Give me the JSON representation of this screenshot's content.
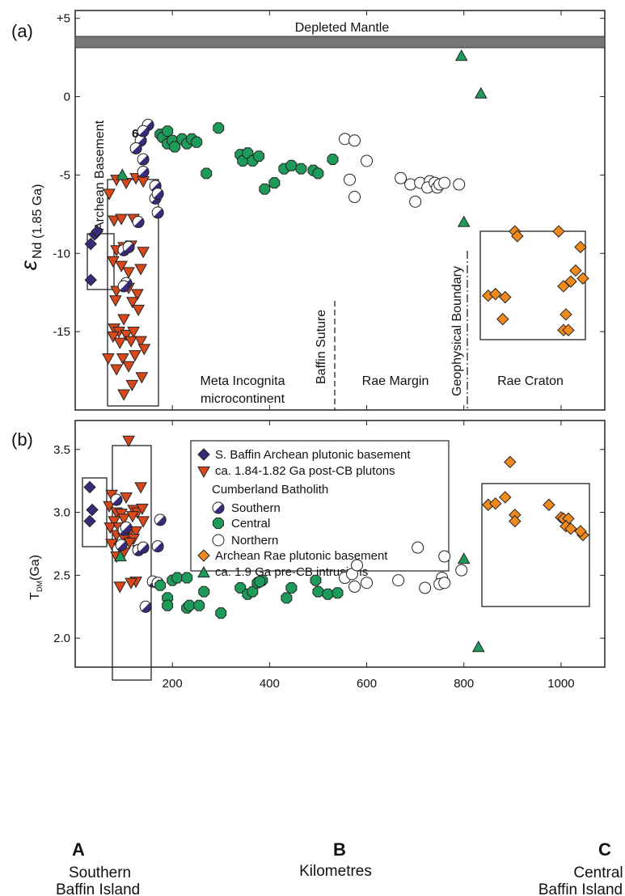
{
  "chart_data": [
    {
      "type": "scatter",
      "panel_label": "(a)",
      "ylabel_symbol": "ε",
      "ylabel_sub": "Nd (1.85 Ga)",
      "ylim": [
        -20,
        5.5
      ],
      "xlim": [
        0,
        1090
      ],
      "ytick_labels": [
        "+5",
        "0",
        "-5",
        "-10",
        "-15"
      ],
      "yticks": [
        5,
        0,
        -5,
        -10,
        -15
      ],
      "band_label": "Depleted Mantle",
      "annotations": {
        "archean_basement": "Archean Basement",
        "baffin_suture": "Baffin Suture",
        "geophysical_boundary": "Geophysical Boundary",
        "meta_incognita_1": "Meta Incognita",
        "meta_incognita_2": "microcontinent",
        "rae_margin": "Rae Margin",
        "rae_craton": "Rae Craton",
        "six": "6"
      },
      "series": [
        {
          "key": "archean_baffin",
          "color": "#3a2a7a",
          "marker": "diamond",
          "points": [
            [
              32,
              -9.4
            ],
            [
              40,
              -8.8
            ],
            [
              45,
              -8.6
            ],
            [
              32,
              -11.7
            ]
          ]
        },
        {
          "key": "post_cb",
          "color": "#d9481a",
          "marker": "triangle-down",
          "points": [
            [
              70,
              -6.2
            ],
            [
              85,
              -5.3
            ],
            [
              105,
              -5.5
            ],
            [
              125,
              -5.2
            ],
            [
              140,
              -5.4
            ],
            [
              80,
              -7.9
            ],
            [
              95,
              -7.8
            ],
            [
              120,
              -7.8
            ],
            [
              85,
              -9.8
            ],
            [
              100,
              -9.6
            ],
            [
              115,
              -9.5
            ],
            [
              140,
              -9.9
            ],
            [
              78,
              -10.5
            ],
            [
              95,
              -10.8
            ],
            [
              110,
              -11.2
            ],
            [
              135,
              -11.0
            ],
            [
              85,
              -12.4
            ],
            [
              110,
              -12.2
            ],
            [
              128,
              -12.6
            ],
            [
              83,
              -13.0
            ],
            [
              118,
              -13.1
            ],
            [
              100,
              -14.2
            ],
            [
              130,
              -13.6
            ],
            [
              80,
              -14.8
            ],
            [
              90,
              -15.0
            ],
            [
              105,
              -15.2
            ],
            [
              120,
              -15.0
            ],
            [
              78,
              -15.3
            ],
            [
              92,
              -15.7
            ],
            [
              115,
              -15.6
            ],
            [
              135,
              -15.6
            ],
            [
              68,
              -16.7
            ],
            [
              98,
              -16.7
            ],
            [
              123,
              -16.5
            ],
            [
              142,
              -16.1
            ],
            [
              85,
              -17.4
            ],
            [
              110,
              -17.2
            ],
            [
              137,
              -17.9
            ],
            [
              117,
              -18.4
            ],
            [
              100,
              -19.0
            ]
          ]
        },
        {
          "key": "southern",
          "color": "#3a2a7a",
          "marker": "half-circle",
          "points": [
            [
              150,
              -1.8
            ],
            [
              135,
              -2.8
            ],
            [
              140,
              -2.2
            ],
            [
              125,
              -3.3
            ],
            [
              140,
              -4.0
            ],
            [
              140,
              -4.8
            ],
            [
              165,
              -5.7
            ],
            [
              165,
              -6.5
            ],
            [
              170,
              -6.2
            ],
            [
              170,
              -7.4
            ],
            [
              130,
              -8.0
            ],
            [
              100,
              -9.8
            ],
            [
              110,
              -9.6
            ],
            [
              105,
              -11.9
            ],
            [
              100,
              -12.1
            ]
          ]
        },
        {
          "key": "central",
          "color": "#1e9a5a",
          "marker": "octagon",
          "points": [
            [
              175,
              -2.4
            ],
            [
              180,
              -2.6
            ],
            [
              190,
              -2.2
            ],
            [
              190,
              -3.0
            ],
            [
              200,
              -2.8
            ],
            [
              205,
              -3.2
            ],
            [
              220,
              -2.7
            ],
            [
              230,
              -3.0
            ],
            [
              240,
              -2.7
            ],
            [
              250,
              -2.9
            ],
            [
              270,
              -4.9
            ],
            [
              295,
              -2.0
            ],
            [
              340,
              -3.7
            ],
            [
              345,
              -4.1
            ],
            [
              355,
              -3.6
            ],
            [
              365,
              -4.1
            ],
            [
              378,
              -3.8
            ],
            [
              390,
              -5.9
            ],
            [
              410,
              -5.5
            ],
            [
              430,
              -4.6
            ],
            [
              445,
              -4.4
            ],
            [
              465,
              -4.6
            ],
            [
              490,
              -4.7
            ],
            [
              500,
              -4.9
            ],
            [
              530,
              -4.0
            ]
          ]
        },
        {
          "key": "northern",
          "color": "#ffffff",
          "marker": "circle",
          "points": [
            [
              555,
              -2.7
            ],
            [
              575,
              -2.8
            ],
            [
              565,
              -5.3
            ],
            [
              575,
              -6.4
            ],
            [
              600,
              -4.1
            ],
            [
              670,
              -5.2
            ],
            [
              690,
              -5.6
            ],
            [
              710,
              -5.5
            ],
            [
              730,
              -5.4
            ],
            [
              700,
              -6.7
            ],
            [
              725,
              -5.8
            ],
            [
              740,
              -5.5
            ],
            [
              745,
              -5.8
            ],
            [
              750,
              -5.6
            ],
            [
              760,
              -5.5
            ],
            [
              790,
              -5.6
            ]
          ]
        },
        {
          "key": "rae",
          "color": "#f08a1e",
          "marker": "diamond",
          "points": [
            [
              850,
              -12.7
            ],
            [
              865,
              -12.6
            ],
            [
              905,
              -8.6
            ],
            [
              910,
              -8.9
            ],
            [
              880,
              -14.2
            ],
            [
              885,
              -12.8
            ],
            [
              995,
              -8.6
            ],
            [
              1005,
              -12.1
            ],
            [
              1010,
              -13.9
            ],
            [
              1030,
              -11.1
            ],
            [
              1005,
              -14.9
            ],
            [
              1040,
              -9.6
            ],
            [
              1045,
              -11.6
            ],
            [
              1020,
              -11.8
            ],
            [
              1015,
              -14.9
            ]
          ]
        },
        {
          "key": "pre_cb",
          "color": "#1e9a5a",
          "marker": "triangle-up",
          "points": [
            [
              795,
              2.6
            ],
            [
              835,
              0.2
            ],
            [
              800,
              -8.0
            ],
            [
              97,
              -5.0
            ]
          ]
        }
      ]
    },
    {
      "type": "scatter",
      "panel_label": "(b)",
      "ylabel_main": "T",
      "ylabel_sub": "DM",
      "ylabel_unit": " (Ga)",
      "ylim": [
        1.77,
        3.73
      ],
      "xlim": [
        0,
        1090
      ],
      "yticks": [
        2.0,
        2.5,
        3.0,
        3.5
      ],
      "ytick_labels": [
        "2.0",
        "2.5",
        "3.0",
        "3.5"
      ],
      "legend": {
        "entries": [
          "S. Baffin Archean plutonic basement",
          "ca. 1.84-1.82 Ga post-CB plutons",
          "Cumberland Batholith",
          "Southern",
          "Central",
          "Northern",
          "Archean Rae plutonic basement",
          "ca. 1.9 Ga pre-CB  intrusions"
        ]
      },
      "series": [
        {
          "key": "archean_baffin",
          "color": "#3a2a7a",
          "marker": "diamond",
          "points": [
            [
              30,
              3.2
            ],
            [
              35,
              3.02
            ],
            [
              30,
              2.93
            ]
          ]
        },
        {
          "key": "post_cb",
          "color": "#d9481a",
          "marker": "triangle-down",
          "points": [
            [
              110,
              3.57
            ],
            [
              75,
              3.14
            ],
            [
              105,
              3.12
            ],
            [
              135,
              3.2
            ],
            [
              70,
              3.05
            ],
            [
              85,
              3.0
            ],
            [
              95,
              2.99
            ],
            [
              120,
              3.02
            ],
            [
              128,
              3.0
            ],
            [
              138,
              3.03
            ],
            [
              80,
              2.93
            ],
            [
              100,
              2.95
            ],
            [
              118,
              2.97
            ],
            [
              140,
              2.93
            ],
            [
              72,
              2.88
            ],
            [
              90,
              2.88
            ],
            [
              110,
              2.83
            ],
            [
              125,
              2.85
            ],
            [
              85,
              2.82
            ],
            [
              100,
              2.8
            ],
            [
              120,
              2.79
            ],
            [
              75,
              2.75
            ],
            [
              92,
              2.72
            ],
            [
              112,
              2.76
            ],
            [
              130,
              2.7
            ],
            [
              85,
              2.65
            ],
            [
              100,
              2.68
            ],
            [
              92,
              2.41
            ],
            [
              125,
              2.45
            ],
            [
              115,
              2.44
            ]
          ]
        },
        {
          "key": "southern",
          "color": "#3a2a7a",
          "marker": "half-circle",
          "points": [
            [
              85,
              3.1
            ],
            [
              175,
              2.94
            ],
            [
              95,
              2.74
            ],
            [
              100,
              2.86
            ],
            [
              105,
              2.88
            ],
            [
              130,
              2.7
            ],
            [
              140,
              2.72
            ],
            [
              170,
              2.73
            ],
            [
              160,
              2.45
            ],
            [
              170,
              2.44
            ],
            [
              145,
              2.25
            ]
          ]
        },
        {
          "key": "central",
          "color": "#1e9a5a",
          "marker": "octagon",
          "points": [
            [
              175,
              2.42
            ],
            [
              190,
              2.32
            ],
            [
              200,
              2.46
            ],
            [
              190,
              2.26
            ],
            [
              210,
              2.48
            ],
            [
              230,
              2.48
            ],
            [
              230,
              2.24
            ],
            [
              235,
              2.26
            ],
            [
              255,
              2.26
            ],
            [
              265,
              2.37
            ],
            [
              300,
              2.2
            ],
            [
              340,
              2.4
            ],
            [
              355,
              2.35
            ],
            [
              365,
              2.37
            ],
            [
              375,
              2.44
            ],
            [
              385,
              2.46
            ],
            [
              380,
              2.45
            ],
            [
              435,
              2.32
            ],
            [
              445,
              2.4
            ],
            [
              495,
              2.46
            ],
            [
              500,
              2.37
            ],
            [
              520,
              2.35
            ],
            [
              540,
              2.36
            ]
          ]
        },
        {
          "key": "northern",
          "color": "#ffffff",
          "marker": "circle",
          "points": [
            [
              555,
              2.48
            ],
            [
              570,
              2.51
            ],
            [
              580,
              2.58
            ],
            [
              575,
              2.41
            ],
            [
              600,
              2.44
            ],
            [
              665,
              2.46
            ],
            [
              705,
              2.72
            ],
            [
              720,
              2.4
            ],
            [
              755,
              2.48
            ],
            [
              760,
              2.65
            ],
            [
              750,
              2.43
            ],
            [
              760,
              2.44
            ],
            [
              795,
              2.54
            ]
          ]
        },
        {
          "key": "rae",
          "color": "#f08a1e",
          "marker": "diamond",
          "points": [
            [
              895,
              3.4
            ],
            [
              885,
              3.12
            ],
            [
              850,
              3.06
            ],
            [
              865,
              3.07
            ],
            [
              905,
              2.98
            ],
            [
              905,
              2.93
            ],
            [
              975,
              3.06
            ],
            [
              1000,
              2.96
            ],
            [
              1005,
              2.95
            ],
            [
              1015,
              2.95
            ],
            [
              1010,
              2.89
            ],
            [
              1020,
              2.87
            ],
            [
              1045,
              2.82
            ],
            [
              1040,
              2.85
            ]
          ]
        },
        {
          "key": "pre_cb",
          "color": "#1e9a5a",
          "marker": "triangle-up",
          "points": [
            [
              800,
              2.63
            ],
            [
              830,
              1.93
            ],
            [
              93,
              2.65
            ]
          ]
        }
      ]
    }
  ],
  "xaxis": {
    "ticks": [
      200,
      400,
      600,
      800,
      1000
    ],
    "tick_labels": [
      "200",
      "400",
      "600",
      "800",
      "1000"
    ],
    "letters": [
      "A",
      "B",
      "C"
    ],
    "letter_positions": [
      0,
      545,
      1090
    ],
    "xlabel": "Kilometres",
    "left_caption_1": "Southern",
    "left_caption_2": "Baffin Island",
    "right_caption_1": "Central",
    "right_caption_2": "Baffin Island"
  }
}
